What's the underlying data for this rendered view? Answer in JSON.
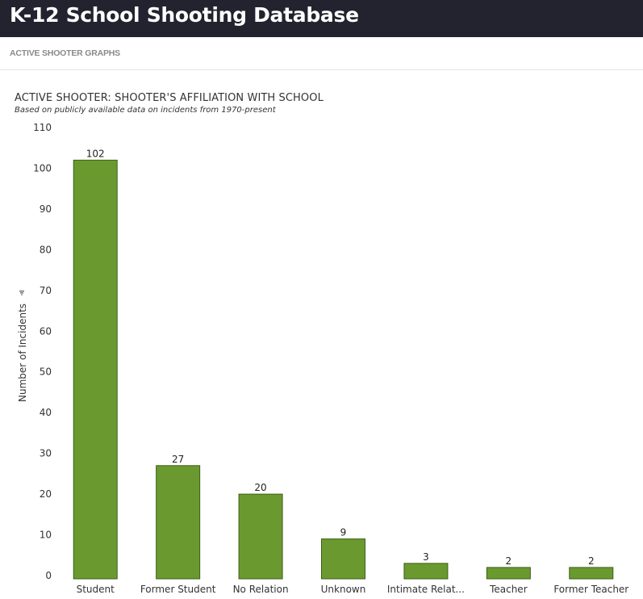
{
  "header": {
    "title": "K-12 School Shooting Database"
  },
  "nav": {
    "active_link": "ACTIVE SHOOTER GRAPHS"
  },
  "colors": {
    "bar": "#6a9a2f",
    "bar_stroke": "#3d5f17",
    "header_bg": "#22232f"
  },
  "chart_data": {
    "type": "bar",
    "title": "ACTIVE SHOOTER: SHOOTER'S AFFILIATION WITH SCHOOL",
    "subtitle": "Based on publicly available data on incidents from 1970-present",
    "xlabel": "",
    "ylabel": "Number of Incidents",
    "categories": [
      "Student",
      "Former Student",
      "No Relation",
      "Unknown",
      "Intimate Relat...",
      "Teacher",
      "Former Teacher"
    ],
    "values": [
      102,
      27,
      20,
      9,
      3,
      2,
      2
    ],
    "ylim": [
      0,
      110
    ],
    "yticks": [
      0,
      10,
      20,
      30,
      40,
      50,
      60,
      70,
      80,
      90,
      100,
      110
    ],
    "data_labels": true,
    "grid": false
  }
}
